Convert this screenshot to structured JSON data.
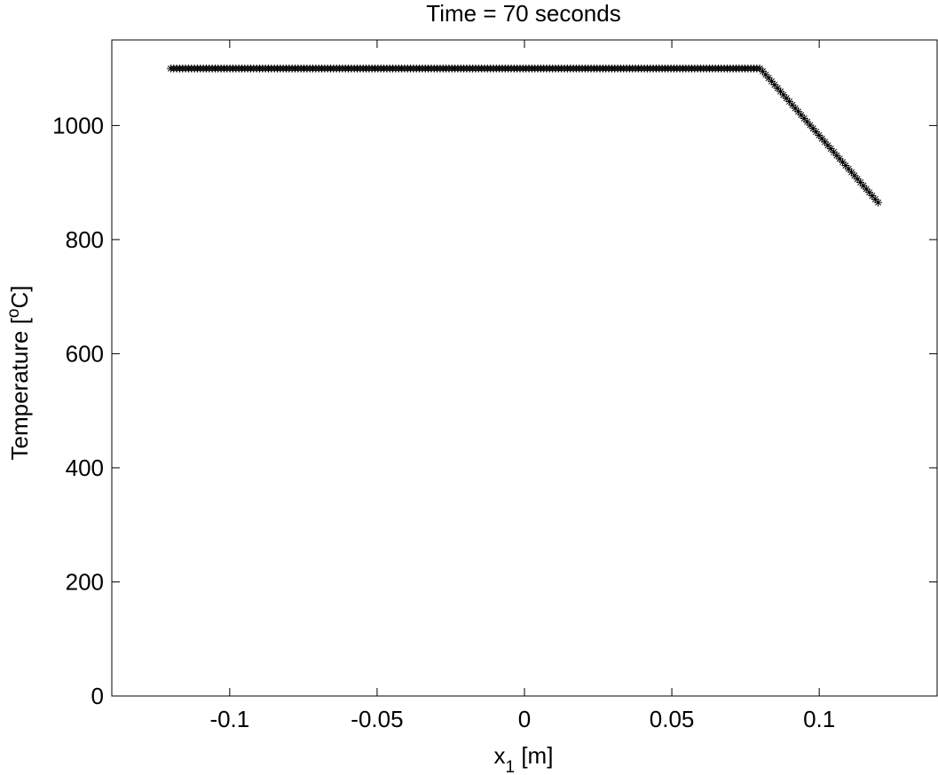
{
  "chart_data": {
    "type": "scatter",
    "title": "Time = 70 seconds",
    "xlabel": {
      "main": "x",
      "sub": "1",
      "unit": " [m]"
    },
    "ylabel": {
      "main": "Temperature [",
      "sup": "o",
      "unit": "C]"
    },
    "xlim": [
      -0.14,
      0.14
    ],
    "ylim": [
      0,
      1150
    ],
    "xticks": [
      -0.1,
      -0.05,
      0,
      0.05,
      0.1
    ],
    "xtick_labels": [
      "-0.1",
      "-0.05",
      "0",
      "0.05",
      "0.1"
    ],
    "yticks": [
      0,
      200,
      400,
      600,
      800,
      1000
    ],
    "ytick_labels": [
      "0",
      "200",
      "400",
      "600",
      "800",
      "1000"
    ],
    "grid": false,
    "marker": "asterisk",
    "marker_color": "#000000",
    "series": [
      {
        "x_start": -0.12,
        "x_end": 0.12,
        "n_points": 240,
        "profile": [
          {
            "x": -0.12,
            "y": 1100
          },
          {
            "x": 0.08,
            "y": 1100
          },
          {
            "x": 0.12,
            "y": 865
          }
        ]
      }
    ]
  }
}
